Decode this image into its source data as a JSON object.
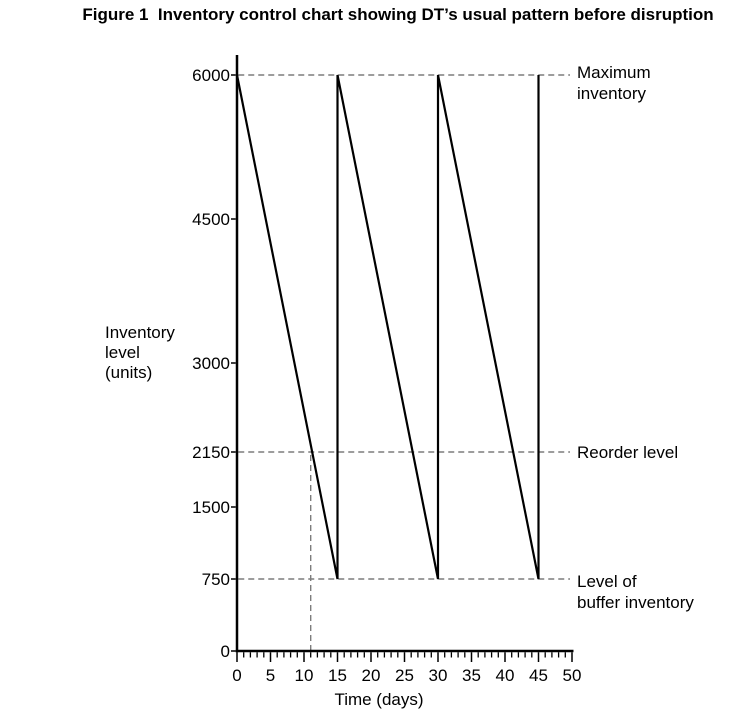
{
  "title": "Figure 1  Inventory control chart showing DT’s usual pattern before disruption",
  "chart_data": {
    "type": "line",
    "title": "Figure 1  Inventory control chart showing DT’s usual pattern before disruption",
    "xlabel": "Time (days)",
    "ylabel_lines": [
      "Inventory",
      "level",
      "(units)"
    ],
    "xlim": [
      0,
      50
    ],
    "ylim": [
      0,
      6000
    ],
    "x_ticks": [
      0,
      5,
      10,
      15,
      20,
      25,
      30,
      35,
      40,
      45,
      50
    ],
    "x_minor_tick_step": 1,
    "y_ticks": [
      0,
      750,
      1500,
      2150,
      3000,
      4500,
      6000
    ],
    "series": [
      {
        "name": "inventory-level",
        "points": [
          [
            0,
            6000
          ],
          [
            15,
            750
          ],
          [
            15,
            6000
          ],
          [
            30,
            750
          ],
          [
            30,
            6000
          ],
          [
            45,
            750
          ],
          [
            45,
            6000
          ]
        ]
      }
    ],
    "annotations": [
      {
        "kind": "hline",
        "value": 6000,
        "name": "maximum-inventory",
        "label_lines": [
          "Maximum",
          "inventory"
        ]
      },
      {
        "kind": "hline",
        "value": 2150,
        "name": "reorder-level",
        "label_lines": [
          "Reorder level"
        ]
      },
      {
        "kind": "hline",
        "value": 750,
        "name": "buffer-inventory",
        "label_lines": [
          "Level of",
          "buffer inventory"
        ]
      },
      {
        "kind": "vline",
        "x": 11,
        "y_from": 0,
        "y_to": 2150,
        "name": "reorder-day"
      }
    ],
    "line_color": "#000000",
    "dash_color": "#7d7d7d",
    "grid": false,
    "legend": false
  }
}
